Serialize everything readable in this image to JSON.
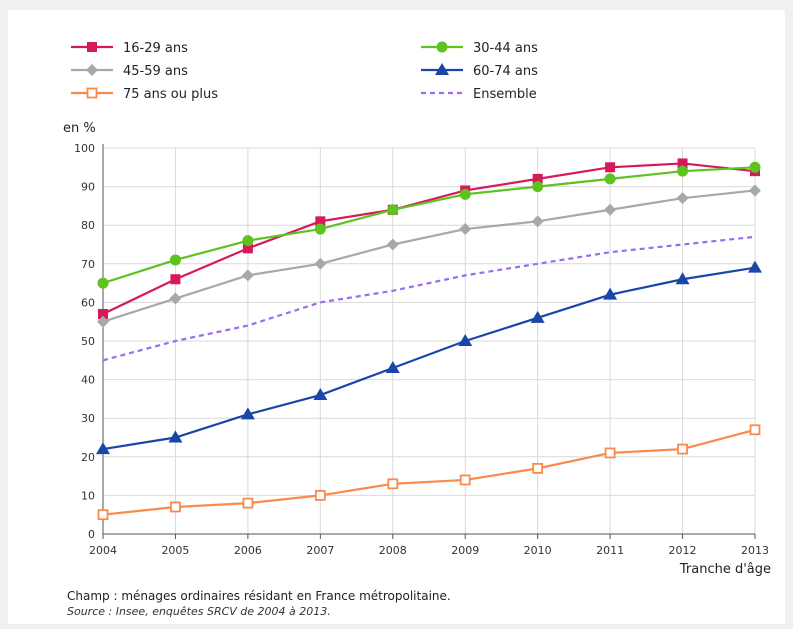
{
  "chart_data": {
    "type": "line",
    "ylabel": "en %",
    "xlabel": "Tranche d'âge",
    "ylim": [
      0,
      100
    ],
    "yticks": [
      0,
      10,
      20,
      30,
      40,
      50,
      60,
      70,
      80,
      90,
      100
    ],
    "x": [
      2004,
      2005,
      2006,
      2007,
      2008,
      2009,
      2010,
      2011,
      2012,
      2013
    ],
    "grid": true,
    "legend_position": "top",
    "series": [
      {
        "name": "16-29 ans",
        "color": "#d6195b",
        "marker": "square-filled",
        "dash": false,
        "values": [
          57,
          66,
          74,
          81,
          84,
          89,
          92,
          95,
          96,
          94
        ]
      },
      {
        "name": "30-44 ans",
        "color": "#5ec21f",
        "marker": "circle-filled",
        "dash": false,
        "values": [
          65,
          71,
          76,
          79,
          84,
          88,
          90,
          92,
          94,
          95
        ]
      },
      {
        "name": "45-59 ans",
        "color": "#a8a8a8",
        "marker": "diamond-filled",
        "dash": false,
        "values": [
          55,
          61,
          67,
          70,
          75,
          79,
          81,
          84,
          87,
          89
        ]
      },
      {
        "name": "60-74 ans",
        "color": "#1a46a8",
        "marker": "triangle-filled",
        "dash": false,
        "values": [
          22,
          25,
          31,
          36,
          43,
          50,
          56,
          62,
          66,
          69
        ]
      },
      {
        "name": "75 ans ou plus",
        "color": "#f98a4a",
        "marker": "square-open",
        "dash": false,
        "values": [
          5,
          7,
          8,
          10,
          13,
          14,
          17,
          21,
          22,
          27
        ]
      },
      {
        "name": "Ensemble",
        "color": "#9b6cf0",
        "marker": "none",
        "dash": true,
        "values": [
          45,
          50,
          54,
          60,
          63,
          67,
          70,
          73,
          75,
          77
        ]
      }
    ]
  },
  "footer": {
    "note": "Champ : ménages ordinaires résidant en France métropolitaine.",
    "source": "Source : Insee, enquêtes SRCV de 2004 à 2013."
  }
}
